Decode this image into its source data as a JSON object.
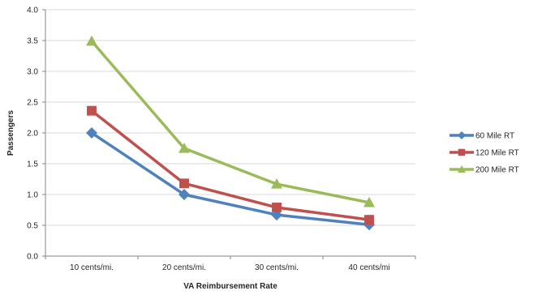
{
  "chart_data": {
    "type": "line",
    "categories": [
      "10 cents/mi.",
      "20 cents/mi.",
      "30 cents/mi.",
      "40 cents/mi"
    ],
    "series": [
      {
        "name": "60 Mile RT",
        "values": [
          2.0,
          1.0,
          0.67,
          0.51
        ],
        "color": "#4f81bd",
        "marker": "diamond"
      },
      {
        "name": "120 Mile RT",
        "values": [
          2.36,
          1.18,
          0.79,
          0.59
        ],
        "color": "#c0504d",
        "marker": "square"
      },
      {
        "name": "200 Mile RT",
        "values": [
          3.49,
          1.75,
          1.17,
          0.87
        ],
        "color": "#9bbb59",
        "marker": "triangle"
      }
    ],
    "xlabel": "VA Reimbursement Rate",
    "ylabel": "Passengers",
    "ylim": [
      0,
      4
    ],
    "yticks": [
      "0.0",
      "0.5",
      "1.0",
      "1.5",
      "2.0",
      "2.5",
      "3.0",
      "3.5",
      "4.0"
    ],
    "grid": true,
    "legend": "right"
  }
}
